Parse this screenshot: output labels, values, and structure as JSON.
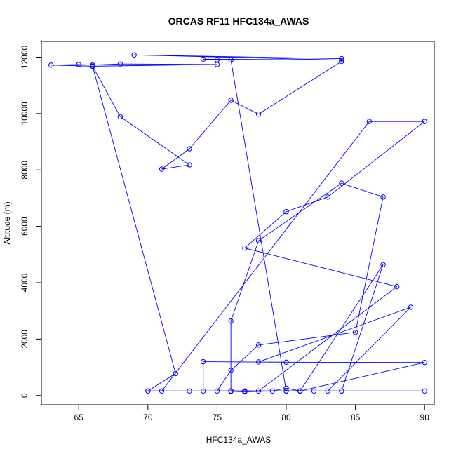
{
  "chart_data": {
    "type": "line",
    "title": "ORCAS RF11 HFC134a_AWAS",
    "xlabel": "HFC134a_AWAS",
    "ylabel": "Altitude (m)",
    "xlim": [
      62.3,
      90.7
    ],
    "ylim": [
      -330,
      12560
    ],
    "xticks": [
      65,
      70,
      75,
      80,
      85,
      90
    ],
    "yticks": [
      0,
      2000,
      4000,
      6000,
      8000,
      10000,
      12000
    ],
    "grid": false,
    "series_color": "#0000ff",
    "series": [
      {
        "marker": "open-circle",
        "x": [
          76,
          77,
          79,
          80,
          81,
          80,
          76,
          73,
          70,
          72,
          66,
          63,
          65,
          66,
          68,
          75,
          66,
          68,
          73,
          71,
          73,
          76,
          78,
          84,
          84,
          69,
          84,
          74,
          75,
          76,
          80,
          81,
          90,
          80,
          74,
          74,
          76,
          78,
          88,
          77,
          80,
          83,
          90,
          86,
          71,
          70,
          76,
          77,
          81,
          84,
          87,
          81,
          80,
          76,
          76,
          78,
          84,
          87,
          85,
          78,
          76,
          75,
          77,
          82,
          84,
          90,
          83,
          89,
          78
        ],
        "y": [
          150,
          130,
          160,
          260,
          160,
          160,
          160,
          160,
          160,
          780,
          11680,
          11720,
          11740,
          11720,
          11760,
          11740,
          11680,
          9890,
          8180,
          8030,
          8750,
          10470,
          9980,
          11850,
          11950,
          12080,
          11900,
          11930,
          11910,
          11900,
          160,
          160,
          1170,
          1180,
          1200,
          160,
          160,
          160,
          3860,
          5230,
          6520,
          7040,
          9720,
          9720,
          160,
          160,
          160,
          160,
          160,
          160,
          4640,
          160,
          160,
          160,
          2640,
          5490,
          7530,
          7040,
          2240,
          1790,
          890,
          160,
          160,
          160,
          160,
          160,
          160,
          3130,
          1190
        ]
      }
    ]
  }
}
